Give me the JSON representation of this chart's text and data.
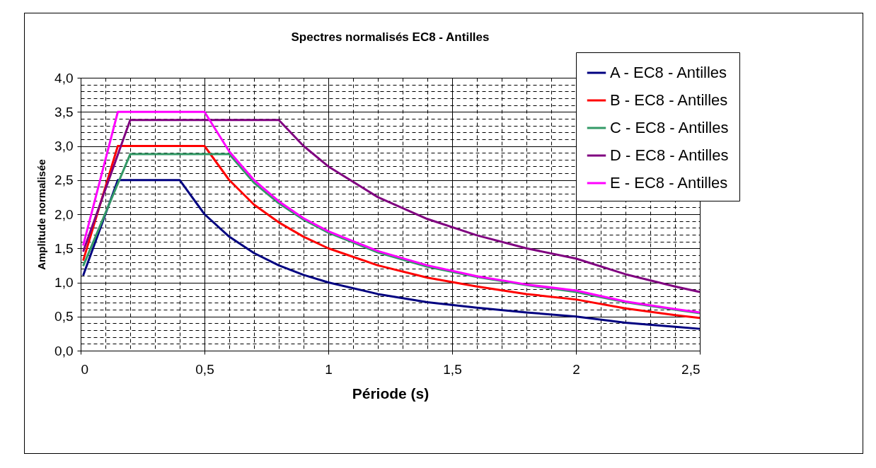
{
  "chart_data": {
    "type": "line",
    "title": "Spectres normalisés EC8 - Antilles",
    "xlabel": "Période (s)",
    "ylabel": "Amplitude normalisée",
    "xlim": [
      0,
      2.5
    ],
    "ylim": [
      0,
      4
    ],
    "xticks": [
      {
        "value": 0,
        "label": "0"
      },
      {
        "value": 0.1,
        "label": null
      },
      {
        "value": 0.2,
        "label": null
      },
      {
        "value": 0.3,
        "label": null
      },
      {
        "value": 0.4,
        "label": null
      },
      {
        "value": 0.5,
        "label": "0,5"
      },
      {
        "value": 0.6,
        "label": null
      },
      {
        "value": 0.7,
        "label": null
      },
      {
        "value": 0.8,
        "label": null
      },
      {
        "value": 0.9,
        "label": null
      },
      {
        "value": 1,
        "label": "1"
      },
      {
        "value": 1.1,
        "label": null
      },
      {
        "value": 1.2,
        "label": null
      },
      {
        "value": 1.3,
        "label": null
      },
      {
        "value": 1.4,
        "label": null
      },
      {
        "value": 1.5,
        "label": "1,5"
      },
      {
        "value": 1.6,
        "label": null
      },
      {
        "value": 1.7,
        "label": null
      },
      {
        "value": 1.8,
        "label": null
      },
      {
        "value": 1.9,
        "label": null
      },
      {
        "value": 2,
        "label": "2"
      },
      {
        "value": 2.1,
        "label": null
      },
      {
        "value": 2.2,
        "label": null
      },
      {
        "value": 2.3,
        "label": null
      },
      {
        "value": 2.4,
        "label": null
      },
      {
        "value": 2.5,
        "label": "2,5"
      }
    ],
    "yticks": [
      {
        "value": 0,
        "label": "0,0"
      },
      {
        "value": 0.1,
        "label": null
      },
      {
        "value": 0.2,
        "label": null
      },
      {
        "value": 0.3,
        "label": null
      },
      {
        "value": 0.4,
        "label": null
      },
      {
        "value": 0.5,
        "label": "0,5"
      },
      {
        "value": 0.6,
        "label": null
      },
      {
        "value": 0.7,
        "label": null
      },
      {
        "value": 0.8,
        "label": null
      },
      {
        "value": 0.9,
        "label": null
      },
      {
        "value": 1,
        "label": "1,0"
      },
      {
        "value": 1.1,
        "label": null
      },
      {
        "value": 1.2,
        "label": null
      },
      {
        "value": 1.3,
        "label": null
      },
      {
        "value": 1.4,
        "label": null
      },
      {
        "value": 1.5,
        "label": "1,5"
      },
      {
        "value": 1.6,
        "label": null
      },
      {
        "value": 1.7,
        "label": null
      },
      {
        "value": 1.8,
        "label": null
      },
      {
        "value": 1.9,
        "label": null
      },
      {
        "value": 2,
        "label": "2,0"
      },
      {
        "value": 2.1,
        "label": null
      },
      {
        "value": 2.2,
        "label": null
      },
      {
        "value": 2.3,
        "label": null
      },
      {
        "value": 2.4,
        "label": null
      },
      {
        "value": 2.5,
        "label": "2,5"
      },
      {
        "value": 2.6,
        "label": null
      },
      {
        "value": 2.7,
        "label": null
      },
      {
        "value": 2.8,
        "label": null
      },
      {
        "value": 2.9,
        "label": null
      },
      {
        "value": 3,
        "label": "3,0"
      },
      {
        "value": 3.1,
        "label": null
      },
      {
        "value": 3.2,
        "label": null
      },
      {
        "value": 3.3,
        "label": null
      },
      {
        "value": 3.4,
        "label": null
      },
      {
        "value": 3.5,
        "label": "3,5"
      },
      {
        "value": 3.6,
        "label": null
      },
      {
        "value": 3.7,
        "label": null
      },
      {
        "value": 3.8,
        "label": null
      },
      {
        "value": 3.9,
        "label": null
      },
      {
        "value": 4,
        "label": "4,0"
      }
    ],
    "grid": true,
    "legend": "top right",
    "marker": "none",
    "line_style": "solid",
    "series": [
      {
        "name": "A - EC8 - Antilles",
        "color": "#000080",
        "x": [
          0.01,
          0.15,
          0.4,
          0.5,
          0.6,
          0.7,
          0.8,
          0.9,
          1.0,
          1.2,
          1.4,
          1.6,
          1.8,
          2.0,
          2.2,
          2.4,
          2.5
        ],
        "values": [
          1.1,
          2.5,
          2.5,
          2.0,
          1.67,
          1.43,
          1.25,
          1.11,
          1.0,
          0.83,
          0.71,
          0.63,
          0.56,
          0.5,
          0.41,
          0.35,
          0.32
        ]
      },
      {
        "name": "B - EC8 - Antilles",
        "color": "#ff0000",
        "x": [
          0.01,
          0.15,
          0.5,
          0.6,
          0.7,
          0.8,
          0.9,
          1.0,
          1.2,
          1.4,
          1.6,
          1.8,
          2.0,
          2.2,
          2.4,
          2.5
        ],
        "values": [
          1.32,
          3.0,
          3.0,
          2.5,
          2.14,
          1.88,
          1.67,
          1.5,
          1.25,
          1.07,
          0.94,
          0.83,
          0.75,
          0.62,
          0.52,
          0.48
        ]
      },
      {
        "name": "C - EC8 - Antilles",
        "color": "#339966",
        "x": [
          0.01,
          0.2,
          0.6,
          0.7,
          0.8,
          0.9,
          1.0,
          1.2,
          1.4,
          1.6,
          1.8,
          2.0,
          2.2,
          2.4,
          2.5
        ],
        "values": [
          1.24,
          2.88,
          2.88,
          2.46,
          2.16,
          1.92,
          1.73,
          1.44,
          1.23,
          1.08,
          0.96,
          0.86,
          0.71,
          0.6,
          0.55
        ]
      },
      {
        "name": "D - EC8 - Antilles",
        "color": "#800080",
        "x": [
          0.01,
          0.2,
          0.8,
          0.9,
          1.0,
          1.2,
          1.4,
          1.6,
          1.8,
          2.0,
          2.2,
          2.4,
          2.5
        ],
        "values": [
          1.45,
          3.38,
          3.38,
          3.0,
          2.7,
          2.25,
          1.93,
          1.69,
          1.5,
          1.35,
          1.12,
          0.94,
          0.86
        ]
      },
      {
        "name": "E - EC8 - Antilles",
        "color": "#ff00ff",
        "x": [
          0.01,
          0.15,
          0.5,
          0.6,
          0.7,
          0.8,
          0.9,
          1.0,
          1.2,
          1.4,
          1.6,
          1.8,
          2.0,
          2.2,
          2.4,
          2.5
        ],
        "values": [
          1.54,
          3.5,
          3.5,
          2.92,
          2.5,
          2.19,
          1.94,
          1.75,
          1.46,
          1.25,
          1.09,
          0.97,
          0.88,
          0.72,
          0.61,
          0.56
        ]
      }
    ]
  }
}
